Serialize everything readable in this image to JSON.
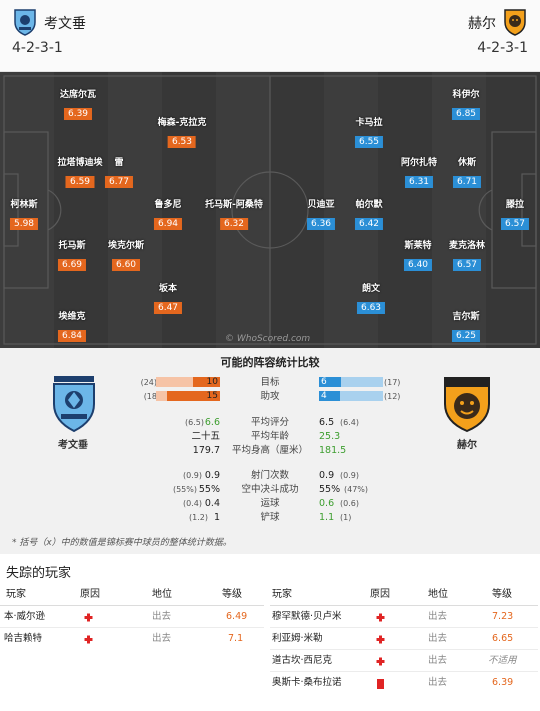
{
  "header": {
    "home": {
      "name": "考文垂",
      "formation": "4-2-3-1",
      "crest_icon": "coventry-crest-icon"
    },
    "away": {
      "name": "赫尔",
      "formation": "4-2-3-1",
      "crest_icon": "hull-crest-icon"
    }
  },
  "pitch": {
    "watermark": "© WhoScored.com",
    "home_players": [
      {
        "name": "达席尔瓦",
        "rating": "6.39"
      },
      {
        "name": "梅森-克拉克",
        "rating": "6.53"
      },
      {
        "name": "拉塔博迪埃",
        "rating": "6.59"
      },
      {
        "name": "雷",
        "rating": "6.77"
      },
      {
        "name": "柯林斯",
        "rating": "5.98"
      },
      {
        "name": "鲁多尼",
        "rating": "6.94"
      },
      {
        "name": "托马斯-阿桑特",
        "rating": "6.32"
      },
      {
        "name": "托马斯",
        "rating": "6.69"
      },
      {
        "name": "埃克尔斯",
        "rating": "6.60"
      },
      {
        "name": "坂本",
        "rating": "6.47"
      },
      {
        "name": "埃维克",
        "rating": "6.84"
      }
    ],
    "away_players": [
      {
        "name": "科伊尔",
        "rating": "6.85"
      },
      {
        "name": "卡马拉",
        "rating": "6.55"
      },
      {
        "name": "阿尔扎特",
        "rating": "6.31"
      },
      {
        "name": "休斯",
        "rating": "6.71"
      },
      {
        "name": "贝迪亚",
        "rating": "6.36"
      },
      {
        "name": "帕尔默",
        "rating": "6.42"
      },
      {
        "name": "滕拉",
        "rating": "6.57"
      },
      {
        "name": "斯莱特",
        "rating": "6.40"
      },
      {
        "name": "麦克洛林",
        "rating": "6.57"
      },
      {
        "name": "朗文",
        "rating": "6.63"
      },
      {
        "name": "吉尔斯",
        "rating": "6.25"
      }
    ]
  },
  "stats": {
    "title": "可能的阵容统计比较",
    "home_team": "考文垂",
    "away_team": "赫尔",
    "colors": {
      "home": "#e4671e",
      "home_light": "#f6c3a6",
      "away": "#2b8fd6",
      "away_light": "#a9d1ee",
      "green": "#3d9e2f"
    },
    "goals": {
      "label": "目标",
      "home": "10",
      "home_paren": "(24)",
      "away": "6",
      "away_paren": "(17)",
      "home_frac": 0.42,
      "home_paren_frac": 1.0,
      "away_frac": 0.35,
      "away_paren_frac": 1.0
    },
    "assists": {
      "label": "助攻",
      "home": "15",
      "home_paren": "(18",
      "away": "4",
      "away_paren": "(12)",
      "home_frac": 0.83,
      "home_paren_frac": 1.0,
      "away_frac": 0.33,
      "away_paren_frac": 1.0
    },
    "avg_rating": {
      "label": "平均评分",
      "home": "6.6",
      "home_paren": "(6.5)",
      "away": "6.5",
      "away_paren": "(6.4)"
    },
    "avg_age": {
      "label": "平均年龄",
      "home": "二十五",
      "away": "25.3"
    },
    "avg_height": {
      "label": "平均身高（厘米）",
      "home": "179.7",
      "away": "181.5"
    },
    "shots": {
      "label": "射门次数",
      "home": "0.9",
      "home_paren": "(0.9)",
      "away": "0.9",
      "away_paren": "(0.9)"
    },
    "aerials": {
      "label": "空中决斗成功",
      "home": "55%",
      "home_paren": "(55%)",
      "away": "55%",
      "away_paren": "(47%)"
    },
    "dribbles": {
      "label": "运球",
      "home": "0.4",
      "home_paren": "(0.4)",
      "away": "0.6",
      "away_paren": "(0.6)"
    },
    "tackles": {
      "label": "铲球",
      "home": "1",
      "home_paren": "(1.2)",
      "away": "1.1",
      "away_paren": "(1)"
    },
    "footnote": "* 括号（x）中的数值是锦标赛中球员的整体统计数据。"
  },
  "missing": {
    "title": "失踪的玩家",
    "headers": {
      "player": "玩家",
      "reason": "原因",
      "position": "地位",
      "rating": "等级"
    },
    "home": [
      {
        "player": "本·威尔逊",
        "reason_icon": "injury-cross-icon",
        "position": "出去",
        "rating": "6.49"
      },
      {
        "player": "哈吉赖特",
        "reason_icon": "injury-cross-icon",
        "position": "出去",
        "rating": "7.1"
      }
    ],
    "away": [
      {
        "player": "穆罕默德·贝卢米",
        "reason_icon": "injury-cross-icon",
        "position": "出去",
        "rating": "7.23"
      },
      {
        "player": "利亚姆·米勒",
        "reason_icon": "injury-cross-icon",
        "position": "出去",
        "rating": "6.65"
      },
      {
        "player": "道古坎·西尼克",
        "reason_icon": "injury-cross-icon",
        "position": "出去",
        "rating": "不适用"
      },
      {
        "player": "奥斯卡·桑布拉诺",
        "reason_icon": "red-card-icon",
        "position": "出去",
        "rating": "6.39"
      }
    ]
  }
}
